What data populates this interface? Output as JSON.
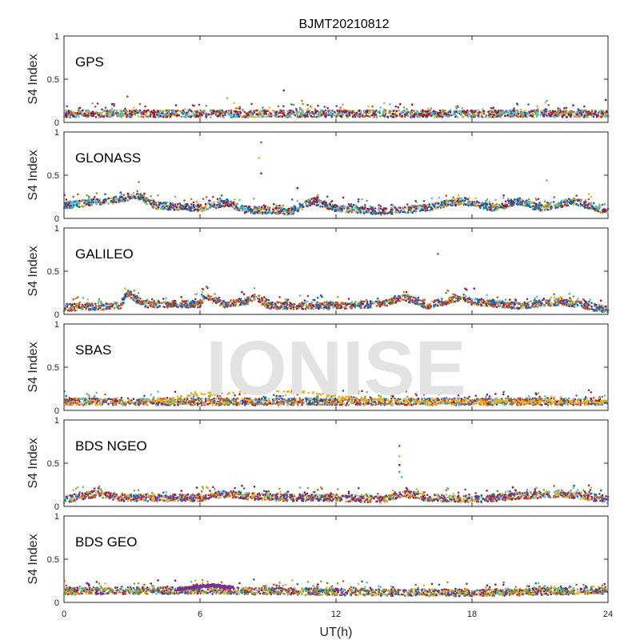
{
  "chart_data": {
    "type": "scatter",
    "title": "BJMT20210812",
    "xlabel": "UT(h)",
    "ylabel": "S4 Index",
    "xlim": [
      0,
      24
    ],
    "ylim": [
      0,
      1
    ],
    "xticks": [
      0,
      6,
      12,
      18,
      24
    ],
    "yticks": [
      0,
      0.5,
      1
    ],
    "ytick_labels": [
      "0",
      "0.5",
      "1"
    ],
    "watermark": "IONISE",
    "colors": [
      "#0072BD",
      "#D95319",
      "#EDB120",
      "#7E2F8E",
      "#77AC30",
      "#4DBEEE",
      "#A2142F"
    ],
    "panels": [
      {
        "label": "GPS",
        "baseline": [
          [
            0,
            0.1
          ],
          [
            6,
            0.1
          ],
          [
            12,
            0.1
          ],
          [
            18,
            0.1
          ],
          [
            24,
            0.1
          ]
        ],
        "spikes": [
          [
            2.8,
            0.3
          ],
          [
            7.2,
            0.28
          ],
          [
            9.7,
            0.37
          ],
          [
            10.5,
            0.25
          ],
          [
            21.3,
            0.25
          ],
          [
            23.9,
            0.26
          ]
        ]
      },
      {
        "label": "GLONASS",
        "baseline": [
          [
            0,
            0.15
          ],
          [
            2,
            0.2
          ],
          [
            3.2,
            0.27
          ],
          [
            4,
            0.15
          ],
          [
            6,
            0.12
          ],
          [
            7.2,
            0.18
          ],
          [
            8,
            0.1
          ],
          [
            10,
            0.08
          ],
          [
            11,
            0.2
          ],
          [
            12,
            0.12
          ],
          [
            14,
            0.08
          ],
          [
            16,
            0.12
          ],
          [
            17.5,
            0.2
          ],
          [
            19,
            0.12
          ],
          [
            20,
            0.2
          ],
          [
            21,
            0.12
          ],
          [
            22.5,
            0.2
          ],
          [
            24,
            0.08
          ]
        ],
        "spikes": [
          [
            8.7,
            0.88
          ],
          [
            8.6,
            0.7
          ],
          [
            8.7,
            0.52
          ],
          [
            3.3,
            0.42
          ],
          [
            21.3,
            0.44
          ],
          [
            10.3,
            0.35
          ],
          [
            2.5,
            0.3
          ]
        ]
      },
      {
        "label": "GALILEO",
        "baseline": [
          [
            0,
            0.08
          ],
          [
            2.5,
            0.1
          ],
          [
            2.8,
            0.25
          ],
          [
            3.5,
            0.12
          ],
          [
            6,
            0.12
          ],
          [
            6.2,
            0.22
          ],
          [
            7,
            0.12
          ],
          [
            8,
            0.15
          ],
          [
            8.5,
            0.2
          ],
          [
            9,
            0.1
          ],
          [
            12,
            0.1
          ],
          [
            14,
            0.12
          ],
          [
            15,
            0.2
          ],
          [
            16,
            0.1
          ],
          [
            17.6,
            0.2
          ],
          [
            18,
            0.15
          ],
          [
            20,
            0.1
          ],
          [
            22,
            0.15
          ],
          [
            24,
            0.05
          ]
        ],
        "spikes": [
          [
            16.5,
            0.7
          ],
          [
            2.7,
            0.3
          ],
          [
            18.1,
            0.3
          ],
          [
            15,
            0.26
          ],
          [
            22.3,
            0.24
          ]
        ]
      },
      {
        "label": "SBAS",
        "baseline": [
          [
            0,
            0.1
          ],
          [
            6,
            0.1
          ],
          [
            12,
            0.1
          ],
          [
            18,
            0.1
          ],
          [
            24,
            0.1
          ]
        ],
        "highlight": [
          [
            4,
            0.1
          ],
          [
            5.5,
            0.18
          ],
          [
            7,
            0.2
          ],
          [
            9,
            0.22
          ],
          [
            10.5,
            0.21
          ],
          [
            12,
            0.17
          ],
          [
            13,
            0.13
          ],
          [
            15,
            0.11
          ],
          [
            18,
            0.1
          ],
          [
            24,
            0.1
          ]
        ],
        "spikes": [
          [
            15.1,
            0.22
          ]
        ]
      },
      {
        "label": "BDS NGEO",
        "baseline": [
          [
            0,
            0.08
          ],
          [
            1.5,
            0.15
          ],
          [
            2.5,
            0.1
          ],
          [
            6,
            0.1
          ],
          [
            7.2,
            0.15
          ],
          [
            8,
            0.12
          ],
          [
            10,
            0.1
          ],
          [
            12,
            0.1
          ],
          [
            14,
            0.08
          ],
          [
            15,
            0.15
          ],
          [
            16,
            0.1
          ],
          [
            18,
            0.08
          ],
          [
            20,
            0.12
          ],
          [
            22,
            0.15
          ],
          [
            24,
            0.08
          ]
        ],
        "spikes": [
          [
            14.8,
            0.7
          ],
          [
            14.8,
            0.58
          ],
          [
            14.8,
            0.48
          ],
          [
            14.8,
            0.4
          ],
          [
            14.9,
            0.34
          ],
          [
            19.8,
            0.22
          ],
          [
            22.5,
            0.24
          ]
        ]
      },
      {
        "label": "BDS GEO",
        "baseline": [
          [
            0,
            0.13
          ],
          [
            6,
            0.14
          ],
          [
            12,
            0.12
          ],
          [
            18,
            0.11
          ],
          [
            24,
            0.14
          ]
        ],
        "highlight": [
          [
            5,
            0.15
          ],
          [
            6.5,
            0.2
          ],
          [
            7.5,
            0.17
          ]
        ],
        "spikes": []
      }
    ]
  }
}
